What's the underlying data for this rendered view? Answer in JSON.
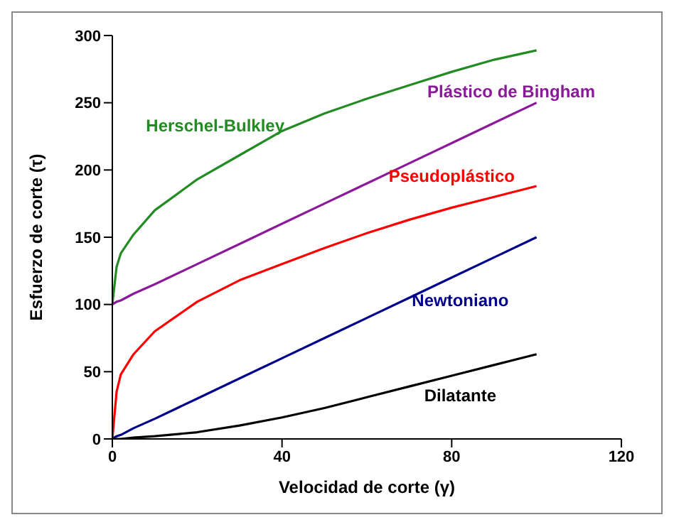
{
  "chart_data": {
    "type": "line",
    "xlabel": "Velocidad de corte (γ)",
    "ylabel": "Esfuerzo de corte (τ)",
    "x": [
      0,
      1,
      2,
      5,
      10,
      20,
      30,
      40,
      50,
      60,
      70,
      80,
      90,
      100
    ],
    "xlim": [
      0,
      120
    ],
    "xticks": [
      0,
      40,
      80,
      120
    ],
    "ylim": [
      0,
      300
    ],
    "yticks": [
      0,
      50,
      100,
      150,
      200,
      250,
      300
    ],
    "grid": false,
    "legend": false,
    "marker": "none",
    "line_style": "solid",
    "series": [
      {
        "name": "Herschel-Bulkley",
        "color": "#228b22",
        "values": [
          100,
          128,
          138,
          152,
          170,
          193,
          211,
          229,
          242,
          253,
          263,
          273,
          282,
          289
        ]
      },
      {
        "name": "Plástico de Bingham",
        "color": "#8b1a9b",
        "values": [
          100,
          102,
          103,
          108,
          115,
          130,
          145,
          160,
          175,
          190,
          205,
          220,
          235,
          250
        ]
      },
      {
        "name": "Pseudoplástico",
        "color": "#ff0000",
        "values": [
          0,
          35,
          48,
          63,
          80,
          102,
          118,
          130,
          142,
          153,
          163,
          172,
          180,
          188
        ]
      },
      {
        "name": "Newtoniano",
        "color": "#00008b",
        "values": [
          0,
          2,
          3,
          8,
          15,
          30,
          45,
          60,
          75,
          90,
          105,
          120,
          135,
          150
        ]
      },
      {
        "name": "Dilatante",
        "color": "#000000",
        "values": [
          0,
          0,
          0,
          1,
          2,
          5,
          10,
          16,
          23,
          31,
          39,
          47,
          55,
          63
        ]
      }
    ]
  }
}
